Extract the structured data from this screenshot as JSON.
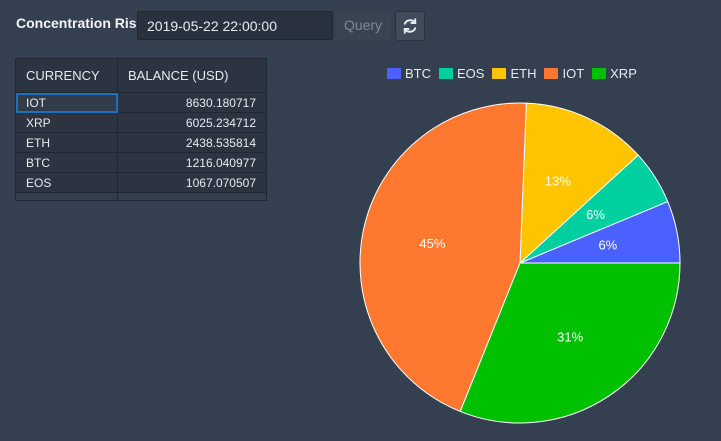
{
  "header": {
    "title": "Concentration Risk",
    "datetime_value": "2019-05-22 22:00:00",
    "query_label": "Query",
    "refresh_icon": "refresh-icon"
  },
  "table": {
    "columns": [
      "CURRENCY",
      "BALANCE (USD)"
    ],
    "rows": [
      {
        "currency": "IOT",
        "balance": "8630.180717"
      },
      {
        "currency": "XRP",
        "balance": "6025.234712"
      },
      {
        "currency": "ETH",
        "balance": "2438.535814"
      },
      {
        "currency": "BTC",
        "balance": "1216.040977"
      },
      {
        "currency": "EOS",
        "balance": "1067.070507"
      }
    ]
  },
  "chart_data": {
    "type": "pie",
    "categories": [
      "BTC",
      "EOS",
      "ETH",
      "IOT",
      "XRP"
    ],
    "values": [
      1216.040977,
      1067.070507,
      2438.535814,
      8630.180717,
      6025.234712
    ],
    "labels": [
      "6%",
      "6%",
      "13%",
      "45%",
      "31%"
    ],
    "colors": [
      "#4a61ff",
      "#00d0a0",
      "#ffc400",
      "#ff7830",
      "#00c000"
    ],
    "legend": "top"
  }
}
